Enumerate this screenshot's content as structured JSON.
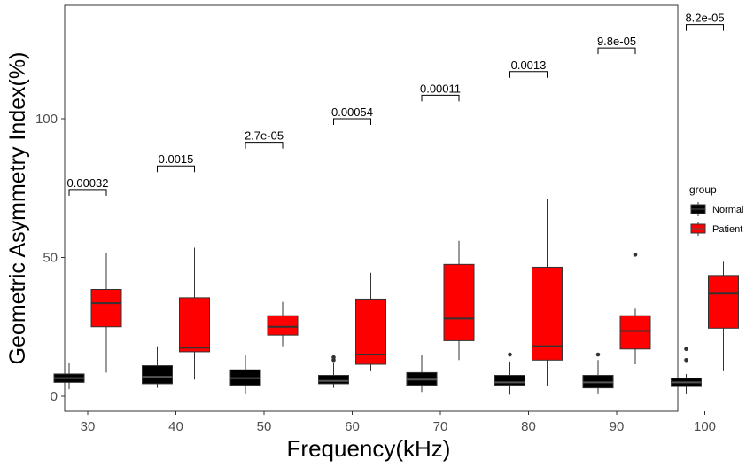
{
  "chart_data": {
    "type": "box",
    "title": "",
    "xlabel": "Frequency(kHz)",
    "ylabel": "Geometric Asymmetry Index(%)",
    "categories": [
      "30",
      "40",
      "50",
      "60",
      "70",
      "80",
      "90",
      "100"
    ],
    "ylim": [
      -3,
      139
    ],
    "yticks": [
      0,
      50,
      100
    ],
    "grid": false,
    "legend": {
      "title": "group",
      "position": "right",
      "entries": [
        {
          "name": "Normal",
          "color": "#000000"
        },
        {
          "name": "Patient",
          "color": "#ff0000"
        }
      ]
    },
    "series": [
      {
        "name": "Normal",
        "color": "#000000",
        "boxes": [
          {
            "min": 2.5,
            "q1": 5,
            "median": 6.5,
            "q3": 8,
            "max": 12,
            "outliers": []
          },
          {
            "min": 3,
            "q1": 4.5,
            "median": 7,
            "q3": 11,
            "max": 18,
            "outliers": []
          },
          {
            "min": 1,
            "q1": 4,
            "median": 6.5,
            "q3": 9.5,
            "max": 15,
            "outliers": []
          },
          {
            "min": 3,
            "q1": 4.5,
            "median": 5.5,
            "q3": 7.5,
            "max": 12,
            "outliers": [
              13,
              14
            ]
          },
          {
            "min": 1.5,
            "q1": 4,
            "median": 6,
            "q3": 8.5,
            "max": 15,
            "outliers": []
          },
          {
            "min": 0.5,
            "q1": 4,
            "median": 5,
            "q3": 7.5,
            "max": 12.5,
            "outliers": [
              15
            ]
          },
          {
            "min": 1,
            "q1": 3,
            "median": 5,
            "q3": 7.5,
            "max": 13,
            "outliers": [
              15
            ]
          },
          {
            "min": 1,
            "q1": 3.5,
            "median": 5,
            "q3": 6.5,
            "max": 8,
            "outliers": [
              13,
              17
            ]
          }
        ]
      },
      {
        "name": "Patient",
        "color": "#ff0000",
        "boxes": [
          {
            "min": 8.5,
            "q1": 25,
            "median": 33.5,
            "q3": 38.5,
            "max": 51.5,
            "outliers": []
          },
          {
            "min": 6,
            "q1": 16,
            "median": 17.5,
            "q3": 35.5,
            "max": 53.5,
            "outliers": []
          },
          {
            "min": 18,
            "q1": 22,
            "median": 25,
            "q3": 29,
            "max": 34,
            "outliers": []
          },
          {
            "min": 9,
            "q1": 11.5,
            "median": 15,
            "q3": 35,
            "max": 44.5,
            "outliers": []
          },
          {
            "min": 13,
            "q1": 20,
            "median": 28,
            "q3": 47.5,
            "max": 56,
            "outliers": []
          },
          {
            "min": 3.5,
            "q1": 13,
            "median": 18,
            "q3": 46.5,
            "max": 71,
            "outliers": []
          },
          {
            "min": 11.5,
            "q1": 17,
            "median": 23.5,
            "q3": 29,
            "max": 31.5,
            "outliers": [
              51
            ]
          },
          {
            "min": 9,
            "q1": 24.5,
            "median": 37,
            "q3": 43.5,
            "max": 48.5,
            "outliers": []
          }
        ]
      }
    ],
    "annotations": [
      {
        "category": "30",
        "label": "0.00032",
        "y": 74.5
      },
      {
        "category": "40",
        "label": "0.0015",
        "y": 83
      },
      {
        "category": "50",
        "label": "2.7e-05",
        "y": 91.5
      },
      {
        "category": "60",
        "label": "0.00054",
        "y": 100
      },
      {
        "category": "70",
        "label": "0.00011",
        "y": 108.5
      },
      {
        "category": "80",
        "label": "0.0013",
        "y": 117
      },
      {
        "category": "90",
        "label": "9.8e-05",
        "y": 125.5
      },
      {
        "category": "100",
        "label": "8.2e-05",
        "y": 134
      }
    ]
  }
}
